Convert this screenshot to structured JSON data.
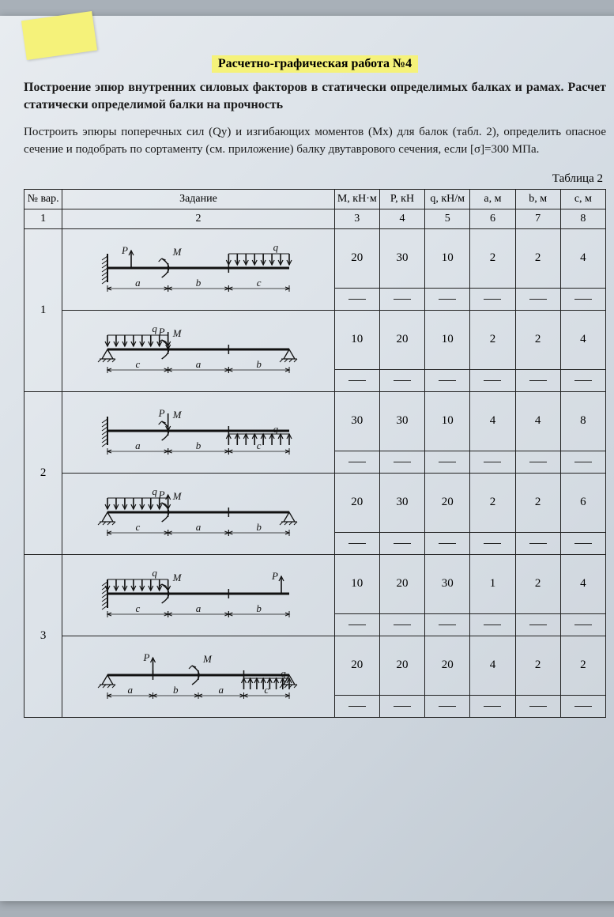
{
  "header": {
    "title": "Расчетно-графическая работа №4",
    "subtitle": "Построение эпюр внутренних силовых факторов в статически определимых балках и рамах. Расчет статически определимой балки на прочность",
    "paragraph": "Построить эпюры поперечных сил (Qy) и изгибающих моментов (Mx) для балок (табл. 2), определить опасное сечение и подобрать по сортаменту (см. приложение) балку двутаврового сечения, если [σ]=300 МПа."
  },
  "table_label": "Таблица 2",
  "columns": {
    "var": "№ вар.",
    "task": "Задание",
    "M": "M, кН·м",
    "P": "P, кН",
    "q": "q, кН/м",
    "a": "a, м",
    "b": "b, м",
    "c": "c, м"
  },
  "col_index": {
    "c1": "1",
    "c2": "2",
    "c3": "3",
    "c4": "4",
    "c5": "5",
    "c6": "6",
    "c7": "7",
    "c8": "8"
  },
  "variants": [
    {
      "num": "1",
      "rows": [
        {
          "diagram": {
            "type": "cantilever",
            "labels": [
              "P",
              "M",
              "q"
            ],
            "segments": [
              "a",
              "b",
              "c"
            ],
            "q_on": "c",
            "P_dir": "up",
            "P_at": "a_start",
            "support": "left-fixed"
          },
          "M": "20",
          "P": "30",
          "q": "10",
          "a": "2",
          "b": "2",
          "c": "4"
        },
        {
          "diagram": {
            "type": "simply",
            "labels": [
              "q",
              "M",
              "P"
            ],
            "segments": [
              "c",
              "a",
              "b"
            ],
            "q_on": "c",
            "P_dir": "down",
            "P_at": "a_end",
            "support": "both-pin"
          },
          "M": "10",
          "P": "20",
          "q": "10",
          "a": "2",
          "b": "2",
          "c": "4"
        }
      ]
    },
    {
      "num": "2",
      "rows": [
        {
          "diagram": {
            "type": "cantilever",
            "labels": [
              "P",
              "M",
              "q"
            ],
            "segments": [
              "a",
              "b",
              "c"
            ],
            "q_on": "c",
            "P_dir": "down",
            "P_at": "a_end",
            "q_dir": "up",
            "support": "left-fixed"
          },
          "M": "30",
          "P": "30",
          "q": "10",
          "a": "4",
          "b": "4",
          "c": "8"
        },
        {
          "diagram": {
            "type": "simply",
            "labels": [
              "q",
              "M",
              "P"
            ],
            "segments": [
              "c",
              "a",
              "b"
            ],
            "q_on": "c",
            "P_dir": "up",
            "P_at": "a_end",
            "q_dir": "down",
            "support": "both-pin"
          },
          "M": "20",
          "P": "30",
          "q": "20",
          "a": "2",
          "b": "2",
          "c": "6"
        }
      ]
    },
    {
      "num": "3",
      "rows": [
        {
          "diagram": {
            "type": "simply-right",
            "labels": [
              "q",
              "M",
              "P"
            ],
            "segments": [
              "c",
              "a",
              "b"
            ],
            "q_on": "c",
            "P_dir": "up",
            "P_at": "b_end",
            "q_dir": "down",
            "support": "left-fixed"
          },
          "M": "10",
          "P": "20",
          "q": "30",
          "a": "1",
          "b": "2",
          "c": "4"
        },
        {
          "diagram": {
            "type": "simply",
            "labels": [
              "P",
              "M",
              "q"
            ],
            "segments": [
              "a",
              "b",
              "a2",
              "c"
            ],
            "q_on": "c",
            "P_dir": "up",
            "P_at": "a_end",
            "q_dir": "up",
            "support": "both-pin"
          },
          "M": "20",
          "P": "20",
          "q": "20",
          "a": "4",
          "b": "2",
          "c": "2"
        }
      ]
    }
  ],
  "colors": {
    "page_bg": "#d8dfe6",
    "highlight": "#f5f27a",
    "line": "#111111"
  }
}
